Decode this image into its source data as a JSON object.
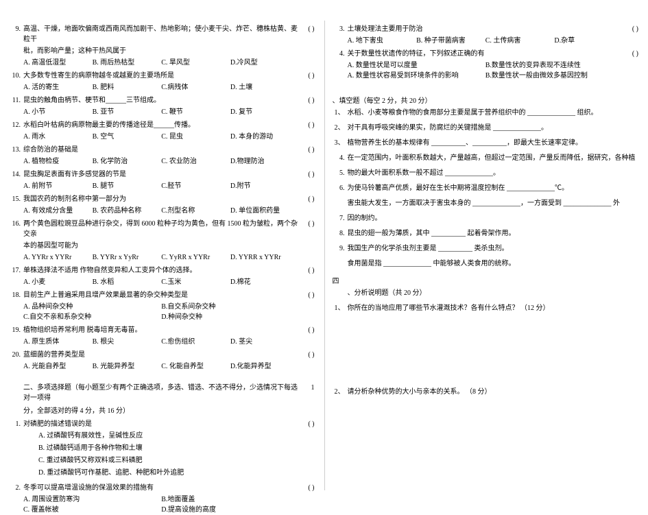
{
  "left": {
    "questions": [
      {
        "num": "9.",
        "stem": "高温、干燥，地面吹偏南或西南风而加剧干、热地影响；使小麦干尖、炸芒、穗株枯黄、麦粒干",
        "stem2": "秕，而影响产量；这种干热风属于",
        "bracket": "( )",
        "opts": [
          "A. 高温低湿型",
          "B. 雨后热枯型",
          "C. 旱风型",
          "D.冷风型"
        ]
      },
      {
        "num": "10.",
        "stem": "大多数专性寄生的病原物越冬或越夏的主要场所是",
        "bracket": "( )",
        "opts": [
          "A. 活的寄生",
          "B. 肥料",
          "C.病残体",
          "D. 土壤"
        ]
      },
      {
        "num": "11.",
        "stem": "昆虫的触角由柄节、梗节和______三节组成。",
        "bracket": "( )",
        "opts": [
          "A. 小节",
          "B. 亚节",
          "C. 鞭节",
          "D. 复节"
        ]
      },
      {
        "num": "12.",
        "stem": "水稻白叶枯病的病原物最主要的传播途径是______传播。",
        "bracket": "( )",
        "opts": [
          "A. 雨水",
          "B. 空气",
          "C. 昆虫",
          "D. 本身的游动"
        ]
      },
      {
        "num": "13.",
        "stem": "综合防治的基础是",
        "bracket": "( )",
        "opts": [
          "A. 植物检疫",
          "B. 化学防治",
          "C. 农业防治",
          "D.物理防治"
        ]
      },
      {
        "num": "14.",
        "stem": "昆虫胸足表面有许多感觉器的节是",
        "bracket": "( )",
        "opts": [
          "A. 前附节",
          "B. 腿节",
          "C.胫节",
          "D.附节"
        ]
      },
      {
        "num": "15.",
        "stem": "我国农药的制剂名称中第一部分为",
        "bracket": "( )",
        "opts": [
          "A. 有效成分含量",
          "B. 农药品种名称",
          "C.剂型名称",
          "D. 单位面积药量"
        ]
      },
      {
        "num": "16.",
        "stem": "两个黄色圆粒豌豆品种进行杂交，得到    6000 粒种子均为黄色，但有   1500 粒为皱粒，两个杂交亲",
        "stem2": "本的基因型可能为",
        "bracket": "( )",
        "opts": [
          "A. YYRr x YYRr",
          "B. YYRr x YyRr",
          "C. YyRR x YYRr",
          "D. YYRR x YYRr"
        ]
      },
      {
        "num": "17.",
        "stem": "单株选择法不适用         作物自然变异和人工变异个体的选择。",
        "bracket": "( )",
        "opts": [
          "A. 小麦",
          "B. 水稻",
          "C.玉米",
          "D.棉花"
        ]
      },
      {
        "num": "18.",
        "stem": "目前生产上普遍采用且增产效果最显著的杂交种类型是",
        "bracket": "( )",
        "opts2": [
          [
            "A. 品种间杂交种",
            "B.自交系间杂交种"
          ],
          [
            "C.自交不亲和系杂交种",
            "D.种间杂交种"
          ]
        ]
      },
      {
        "num": "19.",
        "stem": "植物组织培养常利用          脱毒培育无毒苗。",
        "bracket": "( )",
        "opts": [
          "A. 原生质体",
          "B. 根尖",
          "C.愈伤组织",
          "D. 茎尖"
        ]
      },
      {
        "num": "20.",
        "stem": "蓝细菌的营养类型是",
        "bracket": "( )",
        "opts": [
          "A. 光能自养型",
          "B. 光能异养型",
          "C. 化能自养型",
          "D.化能异养型"
        ]
      }
    ],
    "multiSection": {
      "title": "二、多项选择题（每小题至少有两个正确选项，多选、错选、不选不得分，少选情况下每选对一项得",
      "title2": "分，全部选对的得 4 分，共 16 分）",
      "bracket": "1"
    },
    "multiQuestions": [
      {
        "num": "1.",
        "stem": "对磷肥的描述错误的是",
        "bracket": "( )",
        "opts": [
          "A. 过磷酸钙有展效性，呈碱性反应",
          "B. 过磷酸钙适用于各种作物和土壤",
          "C. 重过磷酸钙又称双料或三料磷肥",
          "D. 重过磷酸钙可作基肥、追肥、种肥和叶外追肥"
        ]
      },
      {
        "num": "2.",
        "stem": "冬季可以提高增温设施的保温效果的措施有",
        "bracket": "( )",
        "opts2": [
          [
            "A. 周围设置防寒沟",
            "B.地面覆盖"
          ],
          [
            "C. 覆盖帐被",
            "D.提高设施的高度"
          ]
        ]
      }
    ]
  },
  "right": {
    "questions": [
      {
        "num": "3.",
        "stem": "土壤处理法主要用于防治",
        "bracket": "( )",
        "opts": [
          "A. 地下害虫",
          "B. 种子带菌病害",
          "C. 土传病害",
          "D.杂草"
        ]
      },
      {
        "num": "4.",
        "stem": "关于数量性状遗传的特征，下列叙述正确的有",
        "bracket": "( )",
        "opts2": [
          [
            "A. 数量性状是可以度量",
            "B.数量性状的变异表现不连续性"
          ],
          [
            "A. 数量性状容易受到环境条件的影响",
            "B.数量性状一般由微效多基因控制"
          ]
        ]
      }
    ],
    "fillSection": {
      "title": "、填空题（每空 2 分，共 20 分）"
    },
    "fills": [
      {
        "num": "1、",
        "text": "水稻、小麦等粮食作物的食用部分主要是属于营养组织中的 ______________ 组织。"
      },
      {
        "num": "2、",
        "text": "对干具有呼吸突峰的果实，防腐烂的关键措施是 ______________。"
      },
      {
        "num": "3、",
        "text": "植物营养生长的基本规律有 __________、__________，即最大生长速率定律。"
      },
      {
        "num": "4.",
        "text": "在一定范围内，叶面积系数越大，产量越高，但超过一定范围，产量反而降低，据研究，各种植"
      },
      {
        "num": "5.",
        "text": "物的最大叶面积系数一般不超过 ______________。"
      },
      {
        "num": "6.",
        "text": "为使马铃薯高产优质，最好在生长中期将温度控制在 ______________℃。"
      },
      {
        "num": "",
        "text": "害虫能大发生，一方面取决于害虫本身的 ______________，一方面受到 ______________ 外"
      },
      {
        "num": "7.",
        "text": "因的制约。"
      },
      {
        "num": "8.",
        "text": "昆虫的翅一般为薄质，其中 __________ 起着骨架作用。"
      },
      {
        "num": "9.",
        "text": "我国生产的化学杀虫剂主要是 __________ 类杀虫剂。"
      },
      {
        "num": "",
        "text": "食用菌是指 ______________ 中能够被人类食用的统称。"
      }
    ],
    "section4": {
      "label": "四",
      "title": "、分析说明题（共 20 分）"
    },
    "analysis": [
      {
        "num": "1、",
        "text": "你所在的当地应用了哪些节水灌溉技术？各有什么特点？   （12 分）"
      }
    ],
    "analysis2": {
      "num": "2、",
      "text": "请分析杂种优势的大小与亲本的关系。   （8 分）"
    }
  }
}
